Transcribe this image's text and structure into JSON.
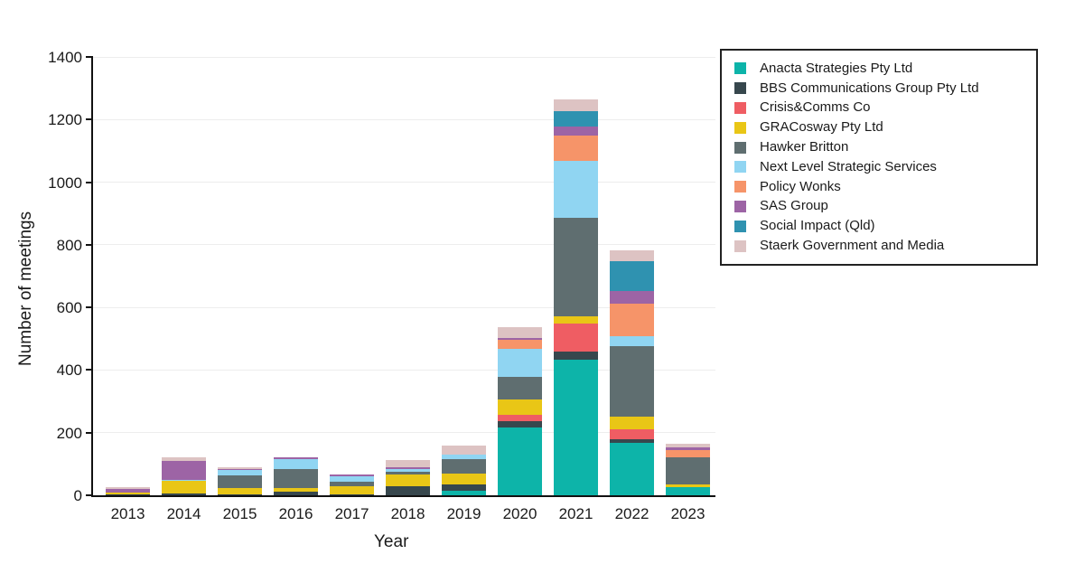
{
  "chart_data": {
    "type": "bar",
    "stacked": true,
    "title": "",
    "xlabel": "Year",
    "ylabel": "Number of meetings",
    "ylim": [
      0,
      1400
    ],
    "yticks": [
      0,
      200,
      400,
      600,
      800,
      1000,
      1200,
      1400
    ],
    "grid": "horizontal-light",
    "legend_position": "outside-right",
    "categories": [
      "2013",
      "2014",
      "2015",
      "2016",
      "2017",
      "2018",
      "2019",
      "2020",
      "2021",
      "2022",
      "2023"
    ],
    "series": [
      {
        "name": "Anacta Strategies Pty Ltd",
        "color": "#0db4a9",
        "values": [
          0,
          0,
          0,
          0,
          0,
          0,
          13,
          217,
          432,
          166,
          27
        ]
      },
      {
        "name": "BBS Communications Group Pty Ltd",
        "color": "#37474d",
        "values": [
          3,
          7,
          4,
          12,
          3,
          30,
          21,
          19,
          26,
          12,
          0
        ]
      },
      {
        "name": "Crisis&Comms Co",
        "color": "#ef5d63",
        "values": [
          0,
          0,
          0,
          0,
          0,
          0,
          0,
          22,
          91,
          32,
          0
        ]
      },
      {
        "name": "GRACosway Pty Ltd",
        "color": "#e9c616",
        "values": [
          7,
          40,
          19,
          12,
          27,
          36,
          36,
          49,
          23,
          40,
          8
        ]
      },
      {
        "name": "Hawker Britton",
        "color": "#5f6e70",
        "values": [
          0,
          0,
          41,
          59,
          12,
          10,
          45,
          72,
          314,
          226,
          85
        ]
      },
      {
        "name": "Next Level Strategic Services",
        "color": "#90d5f2",
        "values": [
          0,
          3,
          16,
          32,
          20,
          8,
          14,
          90,
          182,
          32,
          0
        ]
      },
      {
        "name": "Policy Wonks",
        "color": "#f69469",
        "values": [
          0,
          0,
          0,
          0,
          0,
          0,
          0,
          28,
          82,
          103,
          23
        ]
      },
      {
        "name": "SAS Group",
        "color": "#9d64a5",
        "values": [
          10,
          59,
          3,
          6,
          5,
          6,
          0,
          6,
          27,
          40,
          9
        ]
      },
      {
        "name": "Social Impact (Qld)",
        "color": "#2f92b0",
        "values": [
          0,
          0,
          0,
          0,
          0,
          0,
          0,
          0,
          49,
          96,
          0
        ]
      },
      {
        "name": "Staerk Government and Media",
        "color": "#ddc3c3",
        "values": [
          6,
          11,
          7,
          0,
          0,
          22,
          31,
          34,
          38,
          34,
          13
        ]
      }
    ]
  }
}
